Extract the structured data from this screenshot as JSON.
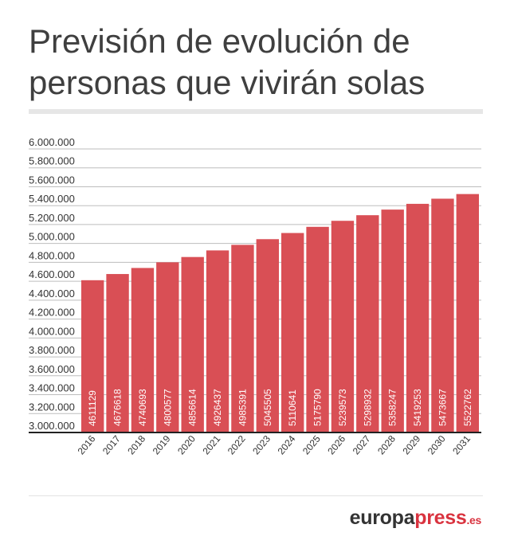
{
  "title": "Previsión de evolución de personas que vivirán solas",
  "brand": {
    "name": "europa",
    "accent": "press",
    "tld": ".es"
  },
  "colors": {
    "bar": "#d94f55",
    "title": "#3f3f3f",
    "brand_accent": "#d9333f"
  },
  "chart_data": {
    "type": "bar",
    "categories": [
      "2016",
      "2017",
      "2018",
      "2019",
      "2020",
      "2021",
      "2022",
      "2023",
      "2024",
      "2025",
      "2026",
      "2027",
      "2028",
      "2029",
      "2030",
      "2031"
    ],
    "values": [
      4611129,
      4676618,
      4740693,
      4800577,
      4856614,
      4926437,
      4985391,
      5045505,
      5110641,
      5175790,
      5239573,
      5298932,
      5358247,
      5419253,
      5473667,
      5522762
    ],
    "ylim": [
      3000000,
      6000000
    ],
    "yticks": [
      "3.000.000",
      "3.200.000",
      "3.400.000",
      "3.600.000",
      "3.800.000",
      "4.000.000",
      "4.200.000",
      "4.400.000",
      "4.600.000",
      "4.800.000",
      "5.000.000",
      "5.200.000",
      "5.400.000",
      "5.600.000",
      "5.800.000",
      "6.000.000"
    ],
    "grid": true,
    "data_labels": "inside-bar-vertical"
  }
}
